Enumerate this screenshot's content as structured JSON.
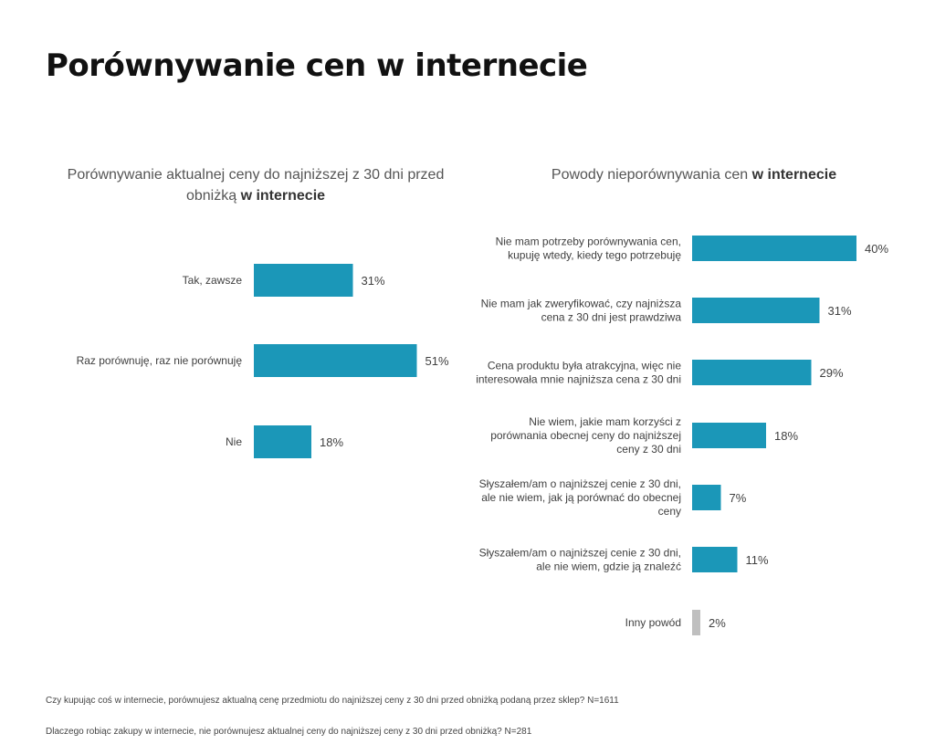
{
  "page_title": "Porównywanie cen w internecie",
  "chart_data": [
    {
      "type": "bar",
      "orientation": "horizontal",
      "title_prefix": "Porównywanie aktualnej ceny do najniższej z 30 dni przed obniżką",
      "title_bold": "w internecie",
      "categories": [
        "Tak, zawsze",
        "Raz porównuję, raz nie porównuję",
        "Nie"
      ],
      "values": [
        31,
        51,
        18
      ],
      "value_labels": [
        "31%",
        "51%",
        "18%"
      ],
      "unit": "%",
      "bar_color": "#1b97b8"
    },
    {
      "type": "bar",
      "orientation": "horizontal",
      "title_prefix": "Powody nieporównywania cen",
      "title_bold": "w internecie",
      "categories": [
        "Nie mam potrzeby porównywania cen, kupuję wtedy, kiedy tego potrzebuję",
        "Nie mam jak zweryfikować, czy najniższa cena z 30 dni jest prawdziwa",
        "Cena produktu była atrakcyjna, więc nie interesowała mnie najniższa cena z 30 dni",
        "Nie wiem, jakie mam korzyści z porównania obecnej ceny do najniższej ceny z 30 dni",
        "Słyszałem/am o najniższej cenie z 30 dni, ale nie wiem, jak ją porównać do obecnej ceny",
        "Słyszałem/am o najniższej cenie z 30 dni, ale nie wiem, gdzie ją znaleźć",
        "Inny powód"
      ],
      "category_lines": [
        [
          "Nie mam potrzeby porównywania cen,",
          "kupuję wtedy, kiedy tego potrzebuję"
        ],
        [
          "Nie mam jak zweryfikować, czy najniższa",
          "cena z 30 dni jest prawdziwa"
        ],
        [
          "Cena produktu była atrakcyjna, więc nie",
          "interesowała mnie najniższa cena z 30 dni"
        ],
        [
          "Nie wiem, jakie mam korzyści z",
          "porównania obecnej ceny do najniższej",
          "ceny z 30 dni"
        ],
        [
          "Słyszałem/am o najniższej cenie z 30 dni,",
          "ale nie wiem, jak ją porównać do obecnej",
          "ceny"
        ],
        [
          "Słyszałem/am o najniższej cenie z 30 dni,",
          "ale nie wiem, gdzie ją znaleźć"
        ],
        [
          "Inny powód"
        ]
      ],
      "values": [
        40,
        31,
        29,
        18,
        7,
        11,
        2
      ],
      "value_labels": [
        "40%",
        "31%",
        "29%",
        "18%",
        "7%",
        "11%",
        "2%"
      ],
      "unit": "%",
      "bar_color": "#1b97b8",
      "bar_colors": [
        "#1b97b8",
        "#1b97b8",
        "#1b97b8",
        "#1b97b8",
        "#1b97b8",
        "#1b97b8",
        "#bfbfbf"
      ]
    }
  ],
  "footnotes": [
    "Czy kupując coś w internecie, porównujesz aktualną cenę przedmiotu do najniższej ceny z 30 dni przed obniżką podaną przez sklep? N=1611",
    "Dlaczego robiąc zakupy w internecie, nie porównujesz aktualnej ceny do najniższej ceny z 30 dni przed obniżką? N=281"
  ]
}
